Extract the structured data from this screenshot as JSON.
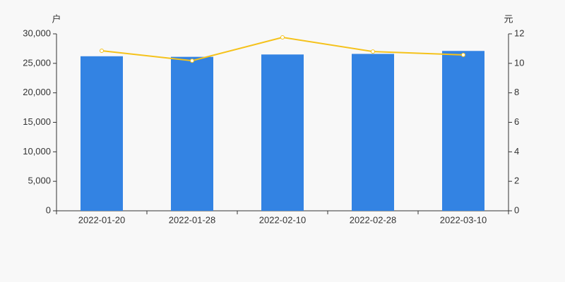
{
  "chart_data": {
    "type": "bar",
    "ylabel": "户",
    "y2label": "元",
    "categories": [
      "2022-01-20",
      "2022-01-28",
      "2022-02-10",
      "2022-02-28",
      "2022-03-10"
    ],
    "series": [
      {
        "type": "bar",
        "color": "#3383e3",
        "values": [
          26200,
          26100,
          26500,
          26600,
          27100
        ]
      },
      {
        "type": "line",
        "axis": "y2",
        "color": "#f5c21b",
        "values": [
          10.85,
          10.18,
          11.76,
          10.8,
          10.57
        ]
      }
    ],
    "ylim": [
      0,
      30000
    ],
    "yticks": [
      0,
      {
        "value": 5000,
        "label": "5,000"
      },
      {
        "value": 10000,
        "label": "10,000"
      },
      {
        "value": 15000,
        "label": "15,000"
      },
      {
        "value": 20000,
        "label": "20,000"
      },
      {
        "value": 25000,
        "label": "25,000"
      },
      {
        "value": 30000,
        "label": "30,000"
      }
    ],
    "y2lim": [
      0,
      12
    ],
    "y2ticks": [
      0,
      2,
      4,
      6,
      8,
      10,
      12
    ]
  }
}
